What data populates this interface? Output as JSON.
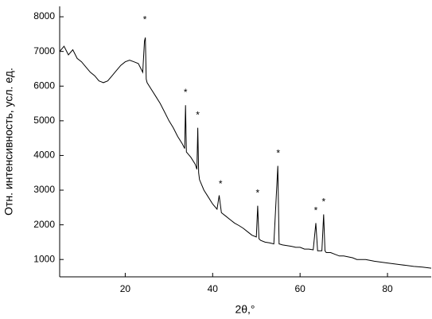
{
  "chart_data": {
    "type": "line",
    "xlabel": "2θ,°",
    "ylabel": "Отн. интенсивность, усл. ед.",
    "color": "#000000",
    "xlim": [
      5,
      90
    ],
    "xticks": [
      20,
      40,
      60,
      80
    ],
    "ylim": [
      500,
      8300
    ],
    "yticks": [
      1000,
      2000,
      3000,
      4000,
      5000,
      6000,
      7000,
      8000
    ],
    "x": [
      5,
      6,
      7,
      8,
      9,
      10,
      11,
      12,
      13,
      14,
      15,
      16,
      17,
      18,
      19,
      20,
      21,
      22,
      23,
      24,
      24.4,
      24.6,
      24.8,
      25,
      26,
      27,
      28,
      29,
      30,
      31,
      32,
      33,
      33.6,
      33.8,
      34,
      35,
      36,
      36.4,
      36.6,
      36.8,
      37,
      38,
      39,
      40,
      41,
      41.5,
      42,
      43,
      44,
      45,
      46,
      47,
      48,
      49,
      50,
      50.3,
      50.6,
      51,
      52,
      53,
      54,
      54.9,
      55.2,
      56,
      57,
      58,
      59,
      60,
      61,
      62,
      63,
      63.6,
      64,
      65,
      65.4,
      65.7,
      66,
      67,
      68,
      69,
      70,
      72,
      73,
      75,
      77,
      80,
      83,
      86,
      88,
      90
    ],
    "values": [
      7000,
      7150,
      6900,
      7050,
      6800,
      6700,
      6550,
      6400,
      6300,
      6150,
      6100,
      6150,
      6300,
      6450,
      6600,
      6700,
      6750,
      6700,
      6650,
      6400,
      7300,
      7400,
      6200,
      6100,
      5900,
      5700,
      5500,
      5250,
      5000,
      4800,
      4550,
      4350,
      4200,
      5450,
      4100,
      3950,
      3750,
      3600,
      4800,
      3500,
      3300,
      3000,
      2800,
      2600,
      2450,
      2850,
      2350,
      2250,
      2150,
      2050,
      1980,
      1900,
      1800,
      1700,
      1650,
      2550,
      1600,
      1550,
      1500,
      1480,
      1450,
      3700,
      1450,
      1420,
      1400,
      1380,
      1350,
      1350,
      1300,
      1300,
      1280,
      2050,
      1250,
      1250,
      2300,
      1250,
      1200,
      1200,
      1150,
      1100,
      1100,
      1050,
      1000,
      1000,
      950,
      900,
      850,
      800,
      780,
      750
    ],
    "annotations": [
      {
        "text": "*",
        "x": 24.5,
        "y": 7900
      },
      {
        "text": "*",
        "x": 33.8,
        "y": 5800
      },
      {
        "text": "*",
        "x": 36.6,
        "y": 5150
      },
      {
        "text": "*",
        "x": 41.8,
        "y": 3170
      },
      {
        "text": "*",
        "x": 50.3,
        "y": 2900
      },
      {
        "text": "*",
        "x": 55,
        "y": 4050
      },
      {
        "text": "*",
        "x": 63.6,
        "y": 2400
      },
      {
        "text": "*",
        "x": 65.4,
        "y": 2650
      }
    ]
  }
}
